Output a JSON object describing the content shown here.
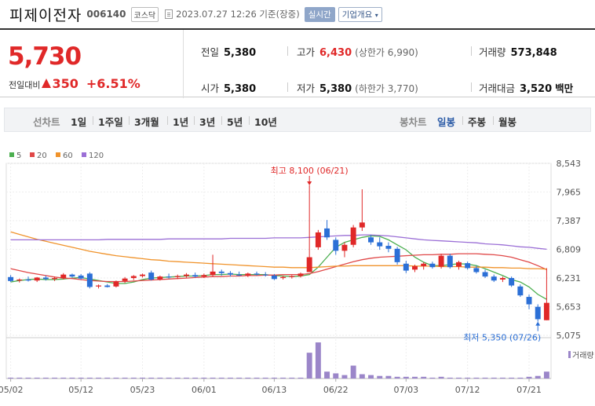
{
  "header": {
    "stock_name": "피제이전자",
    "stock_code": "006140",
    "market": "코스닥",
    "datetime": "2023.07.27 12:26 기준(장중)",
    "realtime": "실시간",
    "company_info": "기업개요"
  },
  "quote": {
    "price": "5,730",
    "change_label": "전일대비",
    "change": "350",
    "change_pct": "+6.51%",
    "prev_label": "전일",
    "prev": "5,380",
    "high_label": "고가",
    "high": "6,430",
    "upper_limit": "(상한가 6,990)",
    "volume_label": "거래량",
    "volume": "573,848",
    "open_label": "시가",
    "open": "5,380",
    "low_label": "저가",
    "low": "5,380",
    "lower_limit": "(하한가 3,770)",
    "amount_label": "거래대금",
    "amount": "3,520",
    "amount_unit": "백만"
  },
  "toolbar": {
    "line_label": "선차트",
    "periods": [
      "1일",
      "1주일",
      "3개월",
      "1년",
      "3년",
      "5년",
      "10년"
    ],
    "candle_label": "봉차트",
    "candles": [
      "일봉",
      "주봉",
      "월봉"
    ],
    "active_candle": "일봉"
  },
  "chart_data": {
    "type": "candlestick",
    "legend": [
      "5",
      "20",
      "60",
      "120"
    ],
    "ma_colors": [
      "#4caf50",
      "#e04848",
      "#f0932b",
      "#9b6fd6"
    ],
    "up_color": "#e02828",
    "down_color": "#2b6fd6",
    "volume_color": "#9b86c9",
    "ylim": [
      5075,
      8543
    ],
    "yticks": [
      "8,543",
      "7,965",
      "7,387",
      "6,809",
      "6,231",
      "5,653",
      "5,075"
    ],
    "xticks": [
      "05/02",
      "05/12",
      "05/23",
      "06/01",
      "06/13",
      "06/22",
      "07/03",
      "07/12",
      "07/21"
    ],
    "xtick_index": [
      0,
      8,
      15,
      22,
      30,
      37,
      45,
      52,
      59
    ],
    "max_annotation": "최고 8,100 (06/21)",
    "min_annotation": "최저 5,350 (07/26)",
    "volume_label": "거래량",
    "candles_ohlc": [
      [
        6250,
        6290,
        6150,
        6170
      ],
      [
        6180,
        6220,
        6140,
        6200
      ],
      [
        6200,
        6260,
        6160,
        6180
      ],
      [
        6180,
        6250,
        6150,
        6240
      ],
      [
        6240,
        6280,
        6180,
        6210
      ],
      [
        6210,
        6260,
        6170,
        6230
      ],
      [
        6230,
        6330,
        6200,
        6300
      ],
      [
        6300,
        6320,
        6240,
        6260
      ],
      [
        6280,
        6310,
        6200,
        6220
      ],
      [
        6320,
        6350,
        6020,
        6050
      ],
      [
        6060,
        6100,
        6020,
        6080
      ],
      [
        6080,
        6110,
        6040,
        6050
      ],
      [
        6060,
        6180,
        6040,
        6160
      ],
      [
        6170,
        6250,
        6130,
        6220
      ],
      [
        6230,
        6290,
        6190,
        6270
      ],
      [
        6270,
        6320,
        6240,
        6300
      ],
      [
        6340,
        6380,
        6180,
        6200
      ],
      [
        6200,
        6280,
        6180,
        6260
      ],
      [
        6260,
        6320,
        6220,
        6250
      ],
      [
        6250,
        6300,
        6210,
        6270
      ],
      [
        6270,
        6330,
        6240,
        6300
      ],
      [
        6290,
        6340,
        6240,
        6260
      ],
      [
        6260,
        6320,
        6230,
        6290
      ],
      [
        6290,
        6700,
        6250,
        6360
      ],
      [
        6360,
        6400,
        6280,
        6330
      ],
      [
        6330,
        6370,
        6260,
        6300
      ],
      [
        6300,
        6360,
        6270,
        6280
      ],
      [
        6280,
        6340,
        6250,
        6320
      ],
      [
        6320,
        6360,
        6280,
        6300
      ],
      [
        6300,
        6350,
        6260,
        6290
      ],
      [
        6280,
        6310,
        6190,
        6210
      ],
      [
        6230,
        6280,
        6200,
        6250
      ],
      [
        6250,
        6290,
        6220,
        6270
      ],
      [
        6270,
        6340,
        6240,
        6320
      ],
      [
        6350,
        8100,
        6450,
        6650
      ],
      [
        6850,
        7200,
        6800,
        7150
      ],
      [
        7230,
        7400,
        7000,
        7050
      ],
      [
        7000,
        7050,
        6700,
        6780
      ],
      [
        6780,
        6950,
        6650,
        6900
      ],
      [
        6900,
        7300,
        6850,
        7250
      ],
      [
        7250,
        8020,
        7180,
        7350
      ],
      [
        7050,
        7100,
        6900,
        6950
      ],
      [
        6950,
        7050,
        6800,
        6870
      ],
      [
        6880,
        6950,
        6750,
        6820
      ],
      [
        6820,
        6860,
        6500,
        6550
      ],
      [
        6520,
        6580,
        6330,
        6380
      ],
      [
        6400,
        6500,
        6350,
        6470
      ],
      [
        6470,
        6550,
        6400,
        6520
      ],
      [
        6520,
        6560,
        6420,
        6450
      ],
      [
        6460,
        6720,
        6420,
        6680
      ],
      [
        6680,
        6720,
        6420,
        6450
      ],
      [
        6460,
        6580,
        6400,
        6550
      ],
      [
        6530,
        6560,
        6400,
        6430
      ],
      [
        6430,
        6480,
        6320,
        6350
      ],
      [
        6350,
        6400,
        6230,
        6260
      ],
      [
        6260,
        6300,
        6150,
        6180
      ],
      [
        6200,
        6260,
        6150,
        6230
      ],
      [
        6230,
        6260,
        6050,
        6080
      ],
      [
        6060,
        6100,
        5850,
        5880
      ],
      [
        5850,
        5900,
        5600,
        5700
      ],
      [
        5650,
        5700,
        5350,
        5400
      ],
      [
        5380,
        6430,
        5380,
        5730
      ]
    ],
    "ma5": [
      6150,
      6180,
      6200,
      6210,
      6200,
      6200,
      6210,
      6230,
      6240,
      6210,
      6180,
      6150,
      6120,
      6120,
      6150,
      6200,
      6230,
      6240,
      6250,
      6260,
      6270,
      6270,
      6280,
      6300,
      6300,
      6310,
      6300,
      6300,
      6300,
      6300,
      6280,
      6270,
      6260,
      6270,
      6300,
      6450,
      6650,
      6850,
      6950,
      7000,
      7050,
      7080,
      7070,
      7000,
      6900,
      6800,
      6650,
      6550,
      6480,
      6480,
      6500,
      6520,
      6510,
      6480,
      6420,
      6350,
      6280,
      6200,
      6150,
      6050,
      5900,
      5800
    ],
    "ma20": [
      6420,
      6380,
      6340,
      6310,
      6280,
      6250,
      6230,
      6220,
      6200,
      6180,
      6170,
      6160,
      6160,
      6160,
      6170,
      6180,
      6190,
      6200,
      6210,
      6220,
      6230,
      6240,
      6250,
      6260,
      6260,
      6270,
      6270,
      6280,
      6280,
      6290,
      6290,
      6300,
      6300,
      6300,
      6320,
      6360,
      6410,
      6460,
      6510,
      6560,
      6600,
      6630,
      6650,
      6660,
      6670,
      6680,
      6690,
      6700,
      6700,
      6710,
      6710,
      6720,
      6720,
      6720,
      6710,
      6700,
      6680,
      6650,
      6600,
      6550,
      6480,
      6400
    ],
    "ma60": [
      7160,
      7110,
      7060,
      7010,
      6970,
      6930,
      6890,
      6850,
      6810,
      6770,
      6740,
      6710,
      6680,
      6660,
      6640,
      6620,
      6600,
      6590,
      6570,
      6560,
      6550,
      6540,
      6530,
      6520,
      6510,
      6500,
      6490,
      6480,
      6470,
      6460,
      6450,
      6450,
      6440,
      6440,
      6440,
      6450,
      6460,
      6470,
      6470,
      6480,
      6480,
      6480,
      6480,
      6480,
      6480,
      6480,
      6470,
      6470,
      6470,
      6460,
      6460,
      6460,
      6450,
      6450,
      6450,
      6440,
      6440,
      6430,
      6430,
      6420,
      6420,
      6410
    ],
    "ma120": [
      7000,
      7000,
      7000,
      7000,
      7000,
      7000,
      7000,
      7000,
      7000,
      7000,
      7000,
      7010,
      7010,
      7010,
      7010,
      7010,
      7010,
      7010,
      7020,
      7020,
      7020,
      7020,
      7020,
      7020,
      7020,
      7030,
      7030,
      7030,
      7030,
      7030,
      7040,
      7040,
      7040,
      7040,
      7050,
      7060,
      7070,
      7080,
      7090,
      7090,
      7100,
      7100,
      7090,
      7080,
      7060,
      7040,
      7020,
      7000,
      6990,
      6980,
      6970,
      6960,
      6950,
      6940,
      6920,
      6910,
      6900,
      6880,
      6860,
      6850,
      6830,
      6810
    ],
    "volume": [
      1,
      1,
      1,
      1,
      1,
      1,
      1,
      1,
      1,
      1,
      1,
      1,
      1,
      1,
      1,
      1,
      1,
      1,
      1,
      1,
      1,
      1,
      1,
      1,
      1,
      1,
      1,
      1,
      1,
      1,
      1,
      1,
      1,
      1,
      30,
      42,
      8,
      6,
      4,
      15,
      5,
      4,
      3,
      3,
      2,
      2,
      2,
      2,
      1,
      2,
      1,
      1,
      1,
      1,
      1,
      1,
      1,
      1,
      1,
      2,
      3,
      8
    ]
  }
}
